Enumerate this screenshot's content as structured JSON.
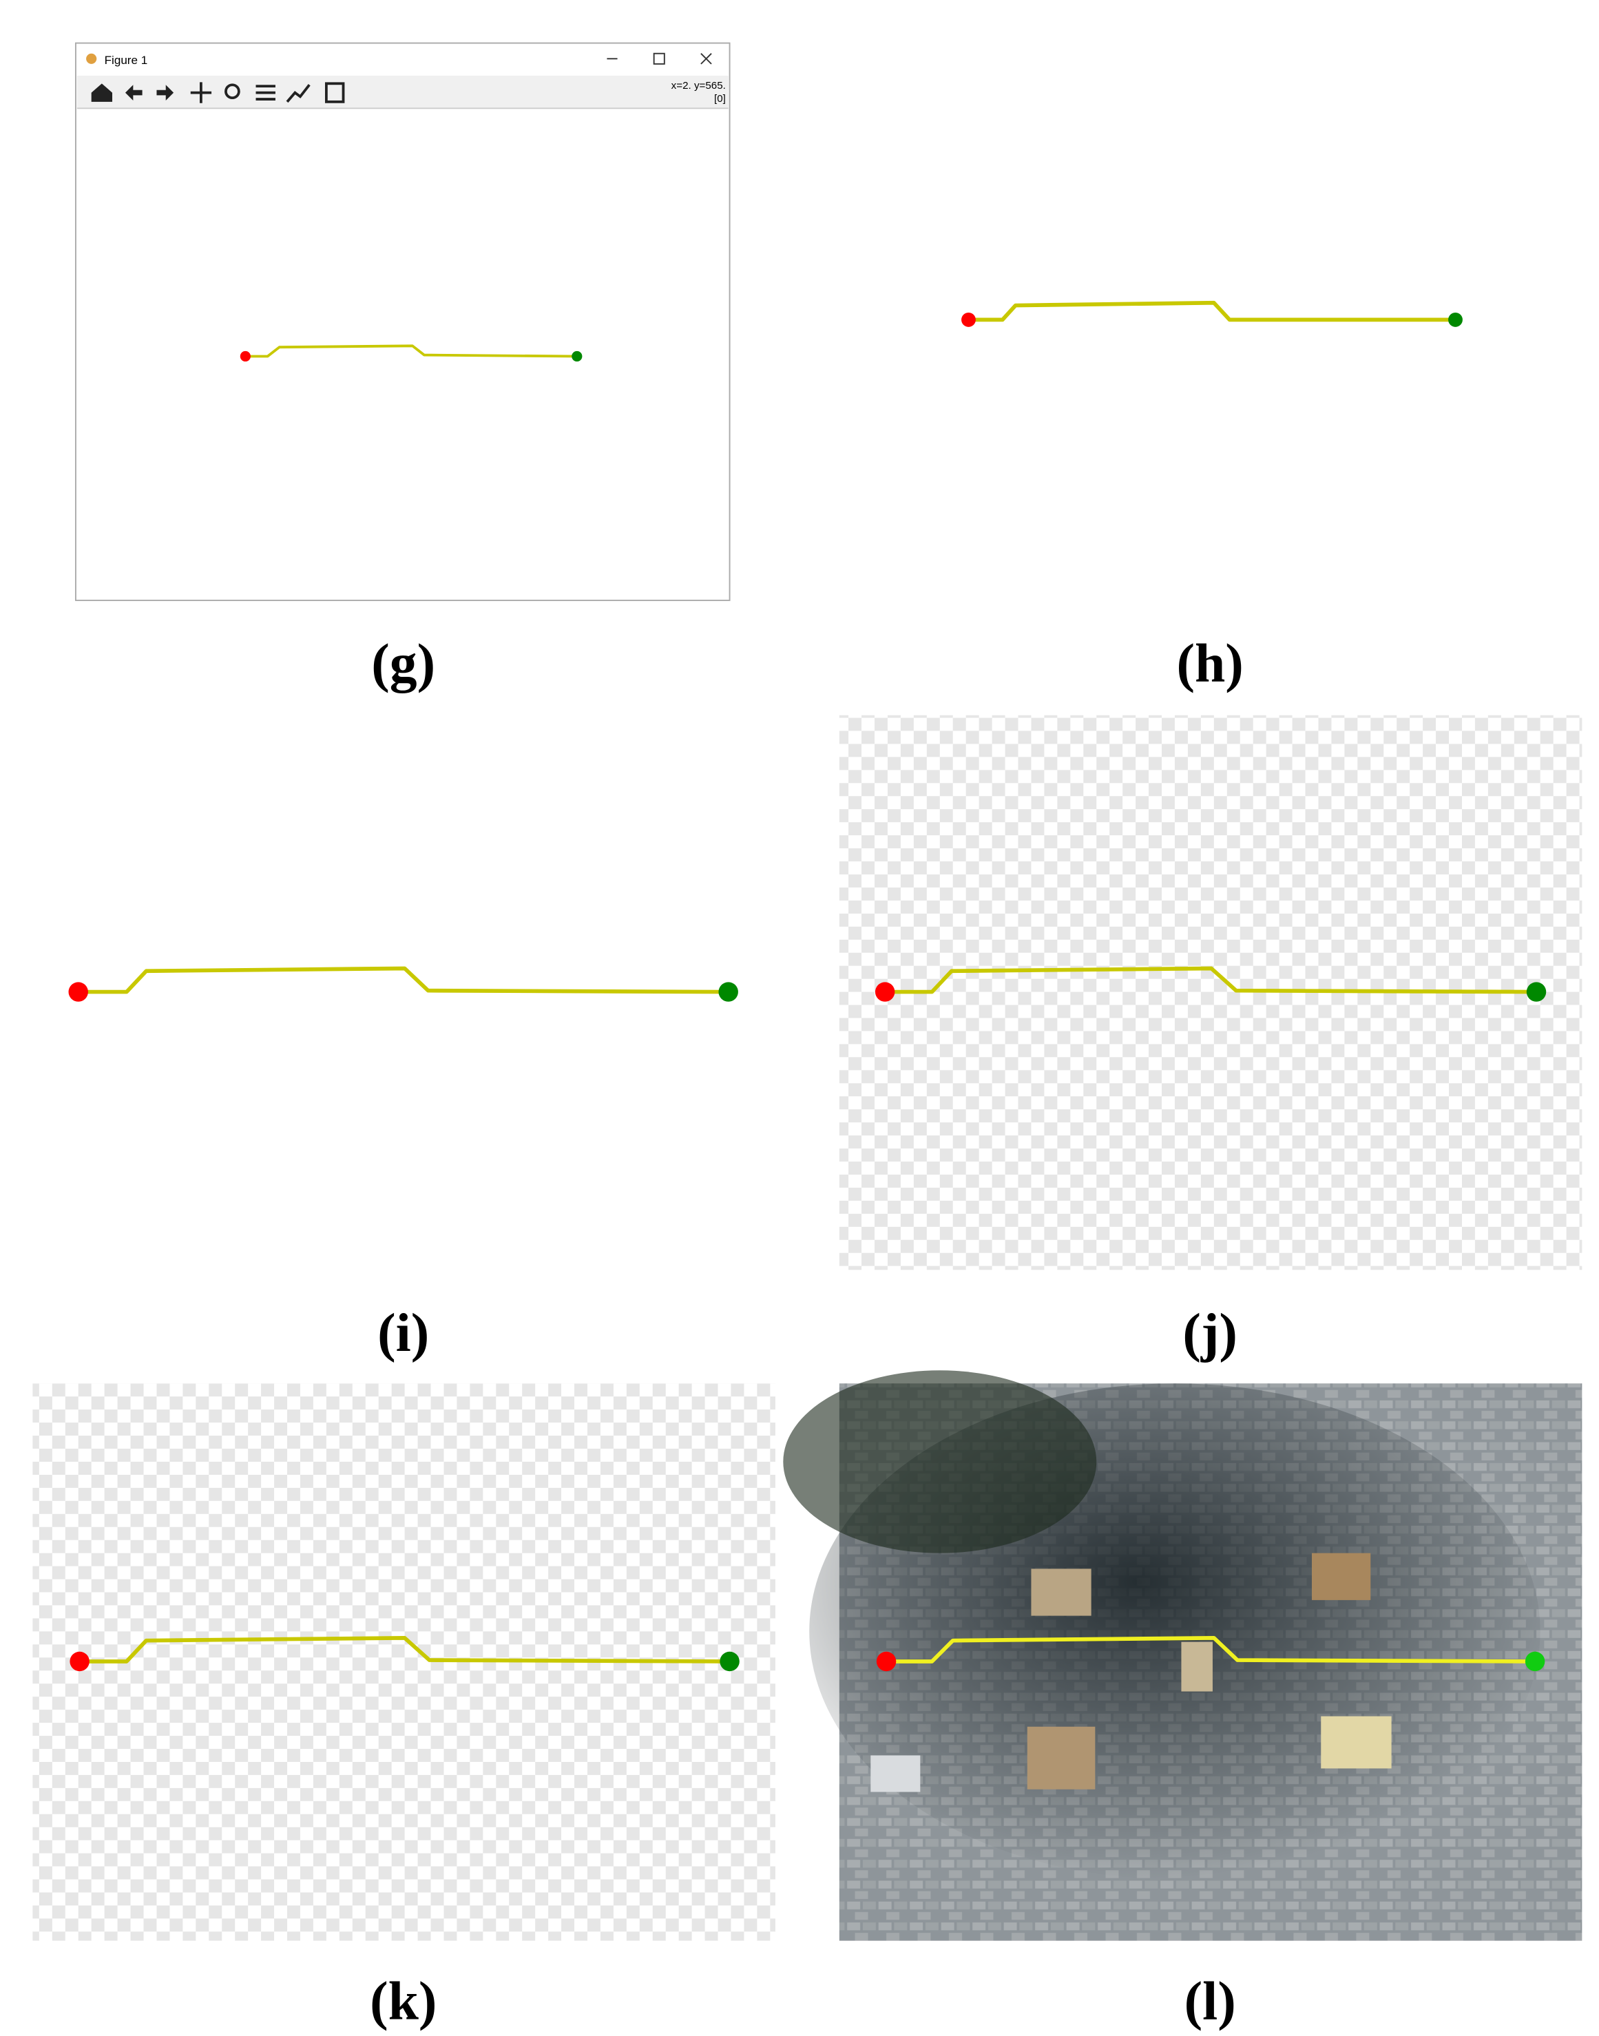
{
  "window": {
    "title": "Figure 1",
    "coords": "x=2. y=565.",
    "coords_index": "[0]"
  },
  "panels": [
    {
      "label": "(g)"
    },
    {
      "label": "(h)"
    },
    {
      "label": "(i)"
    },
    {
      "label": "(j)"
    },
    {
      "label": "(k)"
    },
    {
      "label": "(l)"
    }
  ]
}
